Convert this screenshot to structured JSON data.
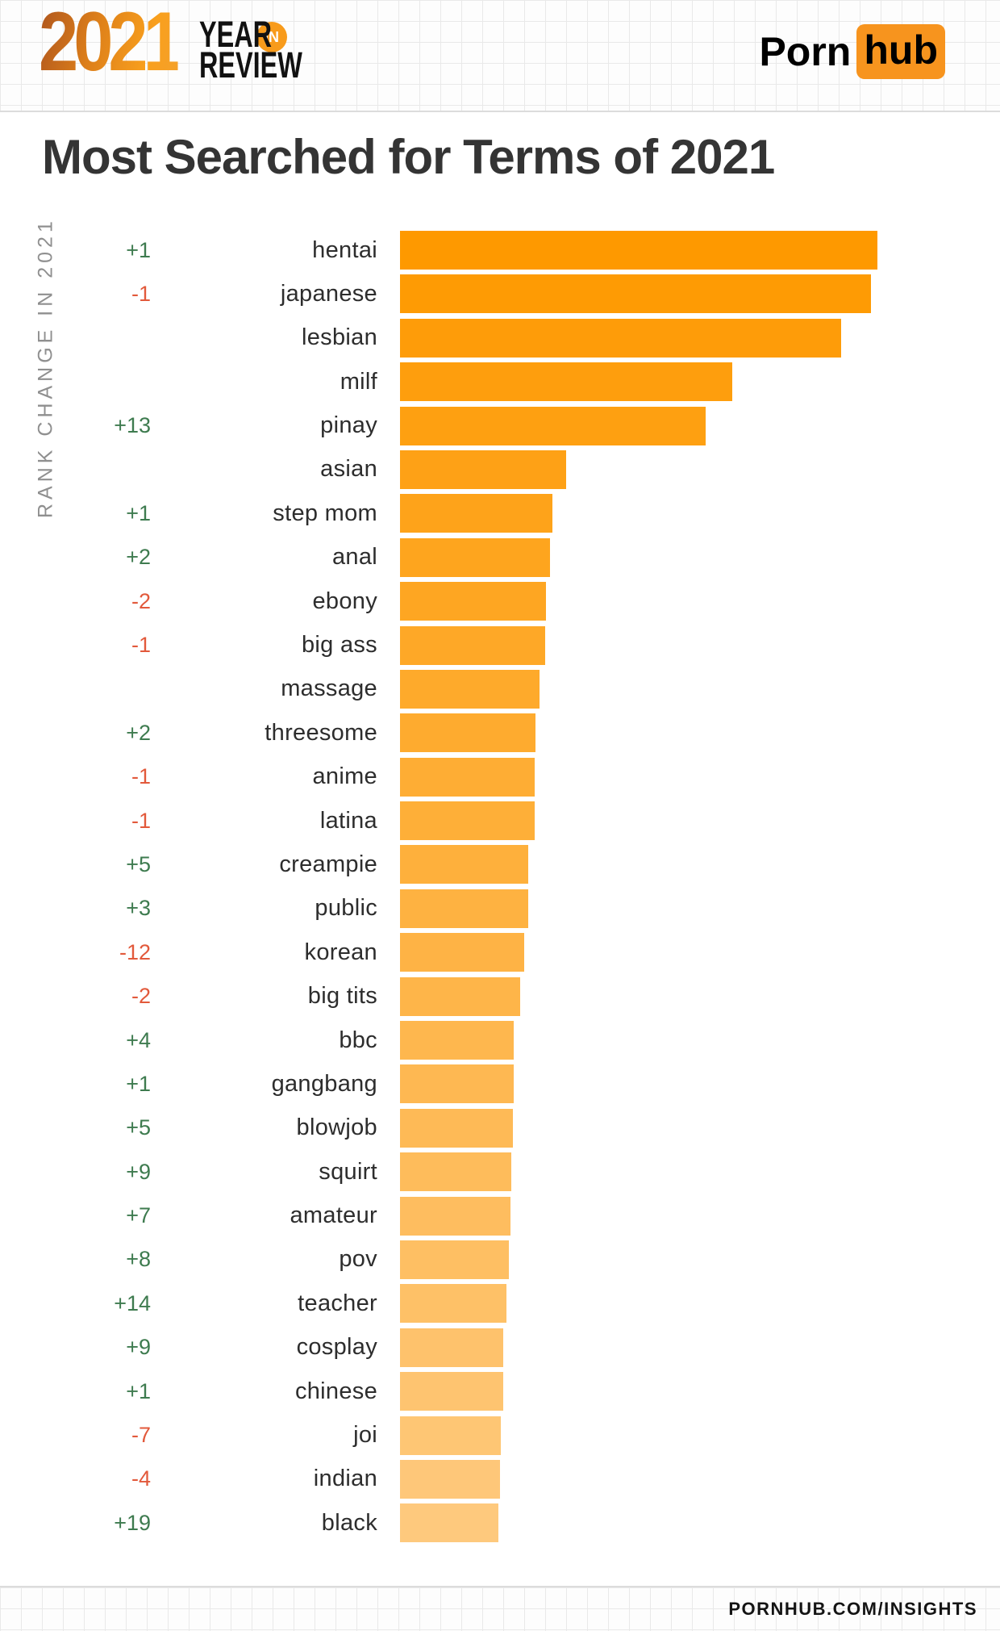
{
  "header": {
    "year": "2021",
    "year_word": "YEAR",
    "in_word": "IN",
    "review_word": "REVIEW",
    "brand_porn": "Porn",
    "brand_hub": "hub"
  },
  "title": "Most Searched for Terms of 2021",
  "footer": "PORNHUB.COM/INSIGHTS",
  "colors": {
    "brand_orange": "#f7941e",
    "gradient_2021_start": "#ae551e",
    "gradient_2021_end": "#f4a12b",
    "title_text": "#343434",
    "axis_label_text": "#8f8f8f",
    "grid_line": "#e9e9e9"
  },
  "chart_data": {
    "type": "bar",
    "orientation": "horizontal",
    "title": "Most Searched for Terms of 2021",
    "ylabel": "RANK CHANGE IN 2021",
    "xlabel": "",
    "legend": "none",
    "grid": "off",
    "value_unit": "relative search volume, % of top term (estimated from bar lengths)",
    "xlim": [
      0,
      100
    ],
    "categories": [
      "hentai",
      "japanese",
      "lesbian",
      "milf",
      "pinay",
      "asian",
      "step mom",
      "anal",
      "ebony",
      "big ass",
      "massage",
      "threesome",
      "anime",
      "latina",
      "creampie",
      "public",
      "korean",
      "big tits",
      "bbc",
      "gangbang",
      "blowjob",
      "squirt",
      "amateur",
      "pov",
      "teacher",
      "cosplay",
      "chinese",
      "joi",
      "indian",
      "black"
    ],
    "rank_change": [
      "+1",
      "-1",
      "",
      "",
      "+13",
      "",
      "+1",
      "+2",
      "-2",
      "-1",
      "",
      "+2",
      "-1",
      "-1",
      "+5",
      "+3",
      "-12",
      "-2",
      "+4",
      "+1",
      "+5",
      "+9",
      "+7",
      "+8",
      "+14",
      "+9",
      "+1",
      "-7",
      "-4",
      "+19"
    ],
    "values": [
      100.0,
      98.6,
      92.4,
      69.6,
      64.0,
      34.8,
      31.9,
      31.4,
      30.6,
      30.4,
      29.2,
      28.4,
      28.2,
      28.2,
      26.9,
      26.9,
      26.0,
      25.2,
      23.8,
      23.8,
      23.6,
      23.3,
      23.1,
      22.8,
      22.3,
      21.6,
      21.6,
      21.1,
      20.9,
      20.6
    ],
    "bar_color_top": "#fe9900",
    "bar_color_bottom": "#fec97d",
    "positive_color": "#3e7b4f",
    "negative_color": "#e2593b"
  }
}
